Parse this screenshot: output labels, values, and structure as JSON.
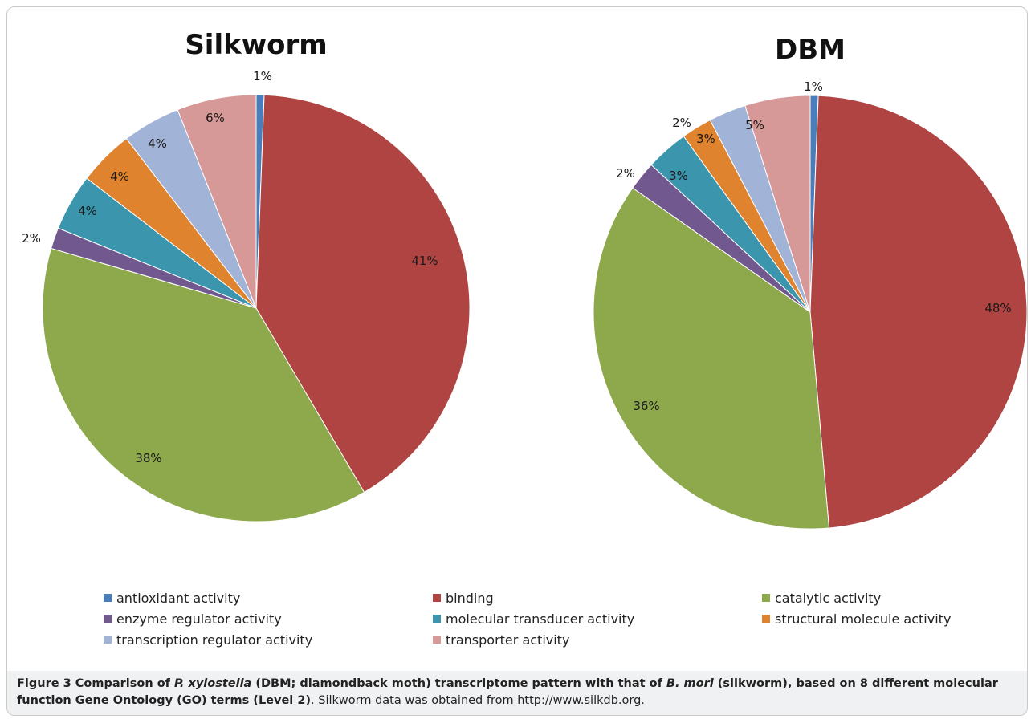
{
  "chart_data": [
    {
      "type": "pie",
      "title": "Silkworm",
      "categories": [
        "antioxidant activity",
        "binding",
        "catalytic activity",
        "enzyme regulator activity",
        "molecular transducer activity",
        "structural molecule activity",
        "transcription regulator activity",
        "transporter activity"
      ],
      "values": [
        0.6,
        41,
        38,
        1.6,
        4.3,
        4.2,
        4.4,
        6.0
      ],
      "labels": [
        "1%",
        "41%",
        "38%",
        "2%",
        "4%",
        "4%",
        "4%",
        "6%"
      ],
      "colors": [
        "#4a7ebb",
        "#b04442",
        "#8da94b",
        "#71598f",
        "#3a95ad",
        "#e0832f",
        "#a2b3d8",
        "#d79998"
      ],
      "start": "12 o'clock, clockwise"
    },
    {
      "type": "pie",
      "title": "DBM",
      "categories": [
        "antioxidant activity",
        "binding",
        "catalytic activity",
        "enzyme regulator activity",
        "molecular transducer activity",
        "structural molecule activity",
        "transcription regulator activity",
        "transporter activity"
      ],
      "values": [
        0.6,
        48.4,
        36.4,
        2.2,
        3.2,
        2.3,
        2.8,
        4.9
      ],
      "labels": [
        "1%",
        "48%",
        "36%",
        "2%",
        "3%",
        "2%",
        "3%",
        "5%"
      ],
      "colors": [
        "#4a7ebb",
        "#b04442",
        "#8da94b",
        "#71598f",
        "#3a95ad",
        "#e0832f",
        "#a2b3d8",
        "#d79998"
      ],
      "start": "12 o'clock, clockwise"
    }
  ],
  "legend": [
    {
      "label": "antioxidant activity",
      "color": "#4a7ebb"
    },
    {
      "label": "binding",
      "color": "#b04442"
    },
    {
      "label": "catalytic activity",
      "color": "#8da94b"
    },
    {
      "label": "enzyme regulator activity",
      "color": "#71598f"
    },
    {
      "label": "molecular transducer activity",
      "color": "#3a95ad"
    },
    {
      "label": "structural molecule activity",
      "color": "#e0832f"
    },
    {
      "label": "transcription regulator activity",
      "color": "#a2b3d8"
    },
    {
      "label": "transporter activity",
      "color": "#d79998"
    }
  ],
  "caption": {
    "fig_label": "Figure 3",
    "t1": " Comparison of ",
    "t2": "P. xylostella",
    "t3": " (DBM; diamondback moth) transcriptome pattern with that of ",
    "t4": "B. mori",
    "t5": " (silkworm), based on 8 different molecular function Gene Ontology (GO) terms (Level 2)",
    "t6": ". Silkworm data was obtained from http://www.silkdb.org."
  }
}
